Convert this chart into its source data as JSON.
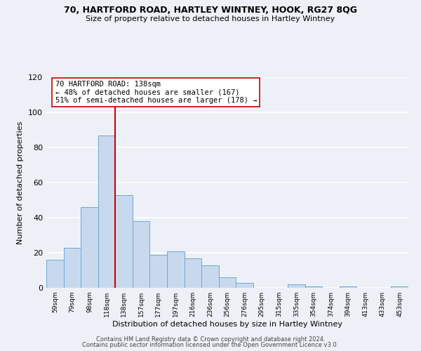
{
  "title1": "70, HARTFORD ROAD, HARTLEY WINTNEY, HOOK, RG27 8QG",
  "title2": "Size of property relative to detached houses in Hartley Wintney",
  "bar_labels": [
    "59sqm",
    "79sqm",
    "98sqm",
    "118sqm",
    "138sqm",
    "157sqm",
    "177sqm",
    "197sqm",
    "216sqm",
    "236sqm",
    "256sqm",
    "276sqm",
    "295sqm",
    "315sqm",
    "335sqm",
    "354sqm",
    "374sqm",
    "394sqm",
    "413sqm",
    "433sqm",
    "453sqm"
  ],
  "bar_heights": [
    16,
    23,
    46,
    87,
    53,
    38,
    19,
    21,
    17,
    13,
    6,
    3,
    0,
    0,
    2,
    1,
    0,
    1,
    0,
    0,
    1
  ],
  "bar_color": "#c8d9ee",
  "bar_edge_color": "#6fa8d0",
  "property_line_x": 3.5,
  "property_line_color": "#cc0000",
  "annotation_line1": "70 HARTFORD ROAD: 138sqm",
  "annotation_line2": "← 48% of detached houses are smaller (167)",
  "annotation_line3": "51% of semi-detached houses are larger (178) →",
  "annotation_box_color": "#ffffff",
  "annotation_box_edge_color": "#cc0000",
  "xlabel": "Distribution of detached houses by size in Hartley Wintney",
  "ylabel": "Number of detached properties",
  "ylim": [
    0,
    120
  ],
  "yticks": [
    0,
    20,
    40,
    60,
    80,
    100,
    120
  ],
  "footer1": "Contains HM Land Registry data © Crown copyright and database right 2024.",
  "footer2": "Contains public sector information licensed under the Open Government Licence v3.0.",
  "background_color": "#edf1f7",
  "grid_color": "#ffffff"
}
